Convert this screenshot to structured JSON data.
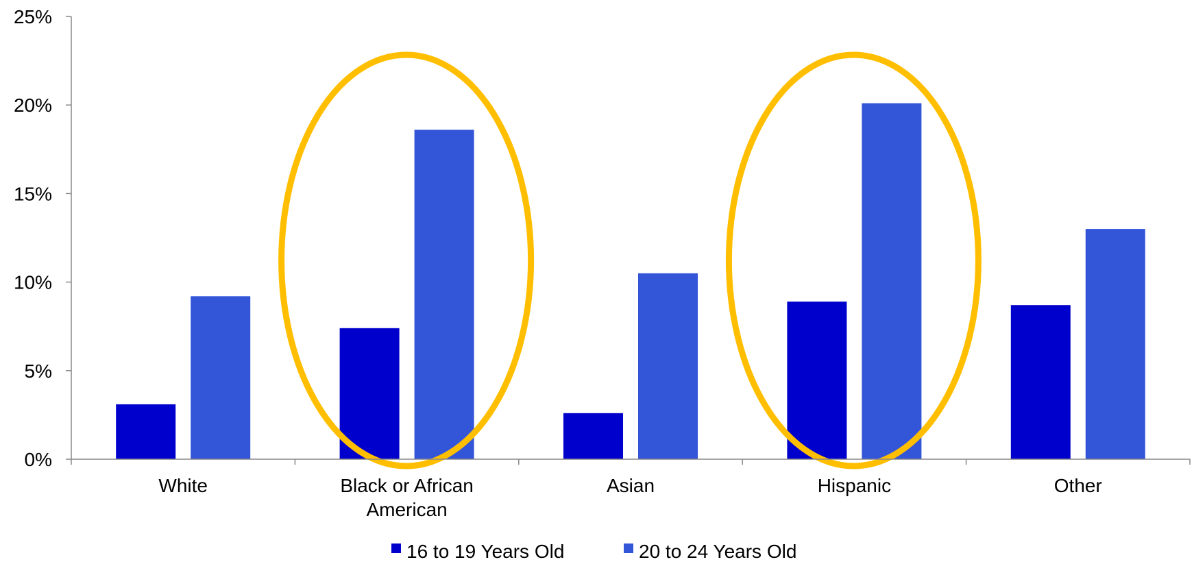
{
  "chart_data": {
    "type": "bar",
    "categories": [
      [
        "White"
      ],
      [
        "Black or African",
        "American"
      ],
      [
        "Asian"
      ],
      [
        "Hispanic"
      ],
      [
        "Other"
      ]
    ],
    "series": [
      {
        "name": "16 to 19 Years Old",
        "values": [
          3.1,
          7.4,
          2.6,
          8.9,
          8.7
        ],
        "color": "#0000cc"
      },
      {
        "name": "20 to 24 Years Old",
        "values": [
          9.2,
          18.6,
          10.5,
          20.1,
          13.0
        ],
        "color": "#3355d8"
      }
    ],
    "yticks": [
      "0%",
      "5%",
      "10%",
      "15%",
      "20%",
      "25%"
    ],
    "ylim": [
      0,
      25
    ],
    "grid": false,
    "legend": "bottom-center",
    "highlight_color": "#ffbf00",
    "highlighted_categories": [
      1,
      3
    ]
  }
}
